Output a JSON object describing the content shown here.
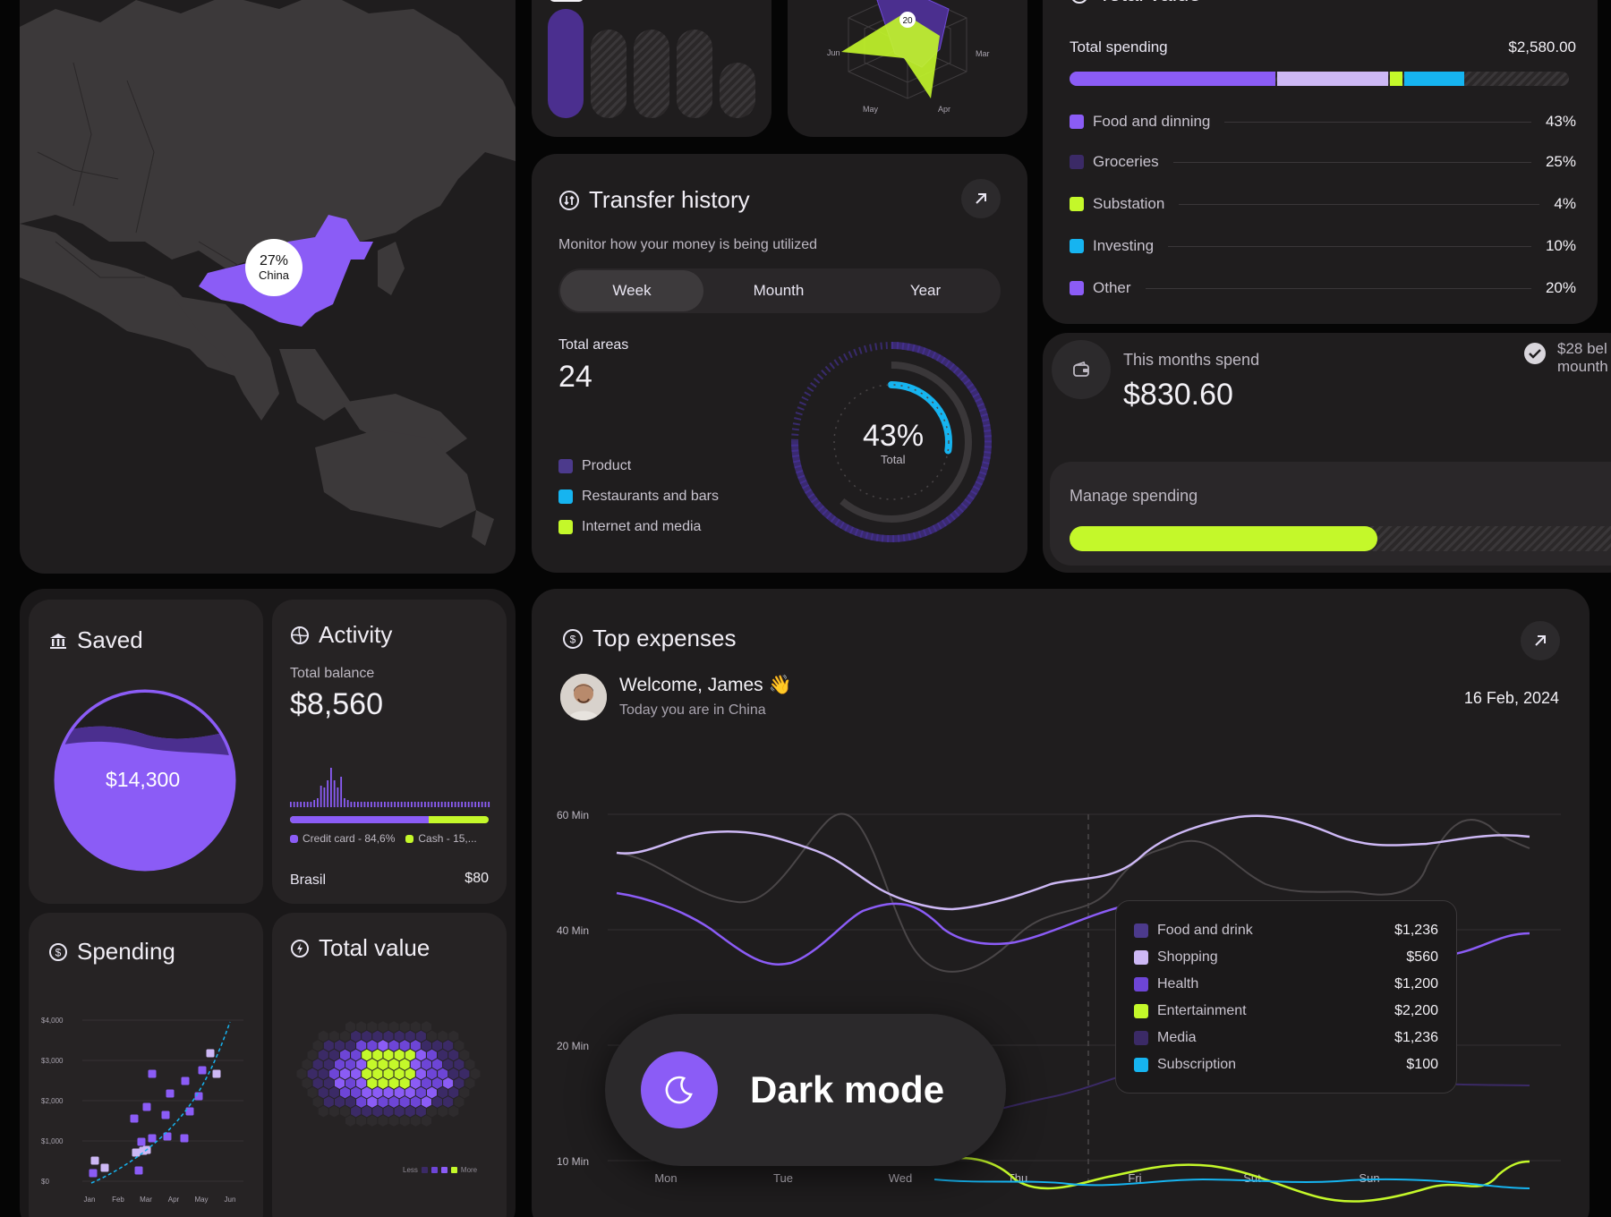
{
  "map": {
    "badge_percent": "27%",
    "badge_country": "China"
  },
  "radar": {
    "center_value": "20",
    "axes": [
      "Jun",
      "Mar",
      "May",
      "Apr"
    ]
  },
  "total_value_card": {
    "title": "Total value",
    "spending_label": "Total spending",
    "spending_amount": "$2,580.00",
    "categories": [
      {
        "label": "Food and dinning",
        "percent": "43%",
        "color": "#8b5cf6",
        "value": 43
      },
      {
        "label": "Groceries",
        "percent": "25%",
        "color": "#3b2a66",
        "value": 25
      },
      {
        "label": "Substation",
        "percent": "4%",
        "color": "#c4f82a",
        "value": 4
      },
      {
        "label": "Investing",
        "percent": "10%",
        "color": "#16b4f0",
        "value": 10
      },
      {
        "label": "Other",
        "percent": "20%",
        "color": "#8b5cf6",
        "value": 20
      }
    ]
  },
  "transfer": {
    "title": "Transfer history",
    "subtitle": "Monitor how your money is being utilized",
    "tabs": [
      "Week",
      "Mounth",
      "Year"
    ],
    "active_tab": "Week",
    "areas_label": "Total areas",
    "areas_value": "24",
    "legend": [
      {
        "label": "Product",
        "color": "#4c3a8c"
      },
      {
        "label": "Restaurants and bars",
        "color": "#16b4f0"
      },
      {
        "label": "Internet and media",
        "color": "#c4f82a"
      }
    ],
    "donut_value": "43%",
    "donut_label": "Total",
    "donut_percent": 43
  },
  "month_spend": {
    "label": "This months spend",
    "amount": "$830.60",
    "note_line1": "$28 bel",
    "note_line2": "mounth",
    "manage_label": "Manage spending",
    "manage_progress": 0.53
  },
  "saved": {
    "title": "Saved",
    "amount": "$14,300"
  },
  "activity": {
    "title": "Activity",
    "balance_label": "Total balance",
    "balance_value": "$8,560",
    "legend_credit": "Credit card - 84,6%",
    "legend_cash": "Cash - 15,...",
    "credit_share": 0.8,
    "country": "Brasil",
    "country_value": "$80"
  },
  "spending": {
    "title": "Spending"
  },
  "total_value_small": {
    "title": "Total value",
    "legend_less": "Less",
    "legend_more": "More"
  },
  "top_expenses": {
    "title": "Top expenses",
    "greeting": "Welcome, James 👋",
    "location": "Today you are in China",
    "date": "16 Feb, 2024",
    "tooltip": [
      {
        "label": "Food and drink",
        "value": "$1,236",
        "color": "#4c3a8c"
      },
      {
        "label": "Shopping",
        "value": "$560",
        "color": "#cdb8f5"
      },
      {
        "label": "Health",
        "value": "$1,200",
        "color": "#6d45d6"
      },
      {
        "label": "Entertainment",
        "value": "$2,200",
        "color": "#c4f82a"
      },
      {
        "label": "Media",
        "value": "$1,236",
        "color": "#3b2a66"
      },
      {
        "label": "Subscription",
        "value": "$100",
        "color": "#16b4f0"
      }
    ],
    "dark_mode_label": "Dark mode"
  },
  "chart_data": [
    {
      "type": "line",
      "categories": [
        "Mon",
        "Tue",
        "Wed",
        "Thu",
        "Fri",
        "Sut",
        "Sun"
      ],
      "y_ticks": [
        "60 Min",
        "40 Min",
        "20 Min",
        "10 Min"
      ],
      "grid": true
    },
    {
      "type": "scatter",
      "categories": [
        "Jan",
        "Feb",
        "Mar",
        "Apr",
        "May",
        "Jun"
      ],
      "y_ticks": [
        "$4,000",
        "$3,000",
        "$2,000",
        "$1,000",
        "$0"
      ],
      "grid": true
    }
  ]
}
